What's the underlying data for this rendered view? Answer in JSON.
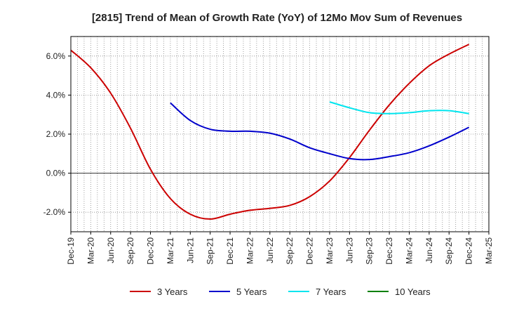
{
  "chart_data": {
    "type": "line",
    "title": "[2815]  Trend of Mean of Growth Rate (YoY) of 12Mo Mov Sum of Revenues",
    "xlabel": "",
    "ylabel": "",
    "ylim": [
      -3.0,
      7.0
    ],
    "y_ticks": [
      -2.0,
      0.0,
      2.0,
      4.0,
      6.0
    ],
    "y_tick_labels": [
      "-2.0%",
      "0.0%",
      "2.0%",
      "4.0%",
      "6.0%"
    ],
    "x_tick_labels": [
      "Dec-19",
      "Mar-20",
      "Jun-20",
      "Sep-20",
      "Dec-20",
      "Mar-21",
      "Jun-21",
      "Sep-21",
      "Dec-21",
      "Mar-22",
      "Jun-22",
      "Sep-22",
      "Dec-22",
      "Mar-23",
      "Jun-23",
      "Sep-23",
      "Dec-23",
      "Mar-24",
      "Jun-24",
      "Sep-24",
      "Dec-24",
      "Mar-25"
    ],
    "x_range": [
      0,
      63
    ],
    "grid": true,
    "legend_position": "bottom",
    "series": [
      {
        "name": "3 Years",
        "color": "#cc0000",
        "x": [
          0,
          3,
          6,
          9,
          12,
          15,
          18,
          21,
          24,
          27,
          30,
          33,
          36,
          39,
          42,
          45,
          48,
          51,
          54,
          57,
          60
        ],
        "values": [
          6.3,
          5.4,
          4.1,
          2.3,
          0.2,
          -1.3,
          -2.1,
          -2.35,
          -2.1,
          -1.9,
          -1.8,
          -1.65,
          -1.2,
          -0.4,
          0.8,
          2.2,
          3.5,
          4.6,
          5.5,
          6.1,
          6.6
        ]
      },
      {
        "name": "5 Years",
        "color": "#0000cc",
        "x": [
          15,
          18,
          21,
          24,
          27,
          30,
          33,
          36,
          39,
          42,
          45,
          48,
          51,
          54,
          57,
          60
        ],
        "values": [
          3.6,
          2.7,
          2.25,
          2.15,
          2.15,
          2.05,
          1.75,
          1.3,
          1.0,
          0.75,
          0.7,
          0.85,
          1.05,
          1.4,
          1.85,
          2.35
        ]
      },
      {
        "name": "7 Years",
        "color": "#00e5ee",
        "x": [
          39,
          42,
          45,
          48,
          51,
          54,
          57,
          60
        ],
        "values": [
          3.65,
          3.35,
          3.1,
          3.05,
          3.1,
          3.2,
          3.2,
          3.05
        ]
      },
      {
        "name": "10 Years",
        "color": "#008000",
        "x": [],
        "values": []
      }
    ]
  }
}
